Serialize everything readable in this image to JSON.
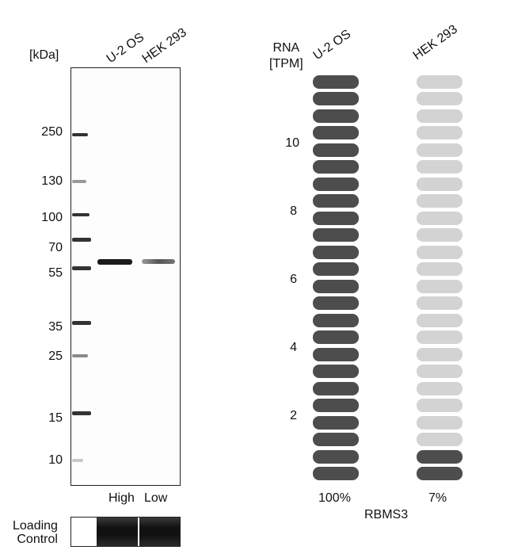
{
  "western_blot": {
    "unit_label": "[kDa]",
    "lanes": [
      "U-2 OS",
      "HEK 293"
    ],
    "ladder": [
      250,
      130,
      100,
      70,
      55,
      35,
      25,
      15,
      10
    ],
    "band_levels": [
      "High",
      "Low"
    ],
    "loading_control_label": "Loading\nControl",
    "colors": {
      "band": "#1a1a1a",
      "ladder": "#3a3a3a",
      "frame": "#222222"
    }
  },
  "chart_data": {
    "type": "bar",
    "title": "",
    "gene": "RBMS3",
    "ylabel": "RNA\n[TPM]",
    "categories": [
      "U-2 OS",
      "HEK 293"
    ],
    "values_percent": [
      100,
      7
    ],
    "value_labels": [
      "100%",
      "7%"
    ],
    "y_ticks": [
      2,
      4,
      6,
      8,
      10
    ],
    "segments_per_bar": 24,
    "colors": {
      "filled": "#4d4d4d",
      "empty": "#d3d3d3"
    }
  }
}
